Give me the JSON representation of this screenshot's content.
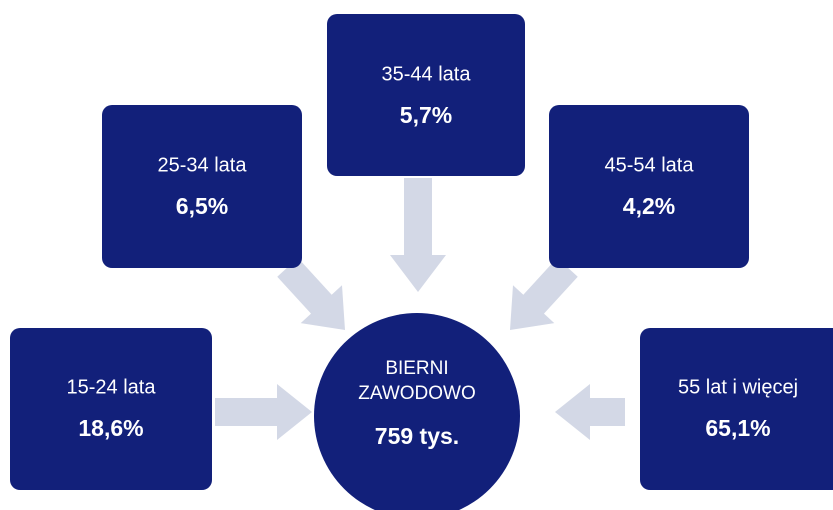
{
  "center": {
    "lines": [
      "BIERNI",
      "ZAWODOWO"
    ],
    "value": "759 tys."
  },
  "nodes": [
    {
      "label": "15-24 lata",
      "value": "18,6%"
    },
    {
      "label": "25-34 lata",
      "value": "6,5%"
    },
    {
      "label": "35-44 lata",
      "value": "5,7%"
    },
    {
      "label": "45-54 lata",
      "value": "4,2%"
    },
    {
      "label": "55 lat i więcej",
      "value": "65,1%"
    }
  ]
}
